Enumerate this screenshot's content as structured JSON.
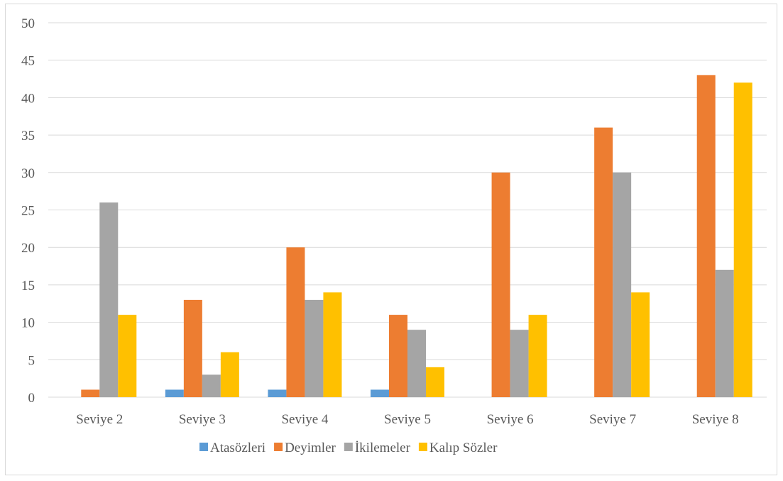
{
  "chart_data": {
    "type": "bar",
    "categories": [
      "Seviye 2",
      "Seviye 3",
      "Seviye 4",
      "Seviye 5",
      "Seviye 6",
      "Seviye 7",
      "Seviye 8"
    ],
    "series": [
      {
        "name": "Atasözleri",
        "color": "#5b9bd5",
        "values": [
          0,
          1,
          1,
          1,
          0,
          0,
          0
        ]
      },
      {
        "name": "Deyimler",
        "color": "#ed7d31",
        "values": [
          1,
          13,
          20,
          11,
          30,
          36,
          43
        ]
      },
      {
        "name": "İkilemeler",
        "color": "#a5a5a5",
        "values": [
          26,
          3,
          13,
          9,
          9,
          30,
          17
        ]
      },
      {
        "name": "Kalıp Sözler",
        "color": "#ffc000",
        "values": [
          11,
          6,
          14,
          4,
          11,
          14,
          42
        ]
      }
    ],
    "ylim": [
      0,
      50
    ],
    "ytick_step": 5,
    "grid": true,
    "legend_position": "bottom"
  }
}
